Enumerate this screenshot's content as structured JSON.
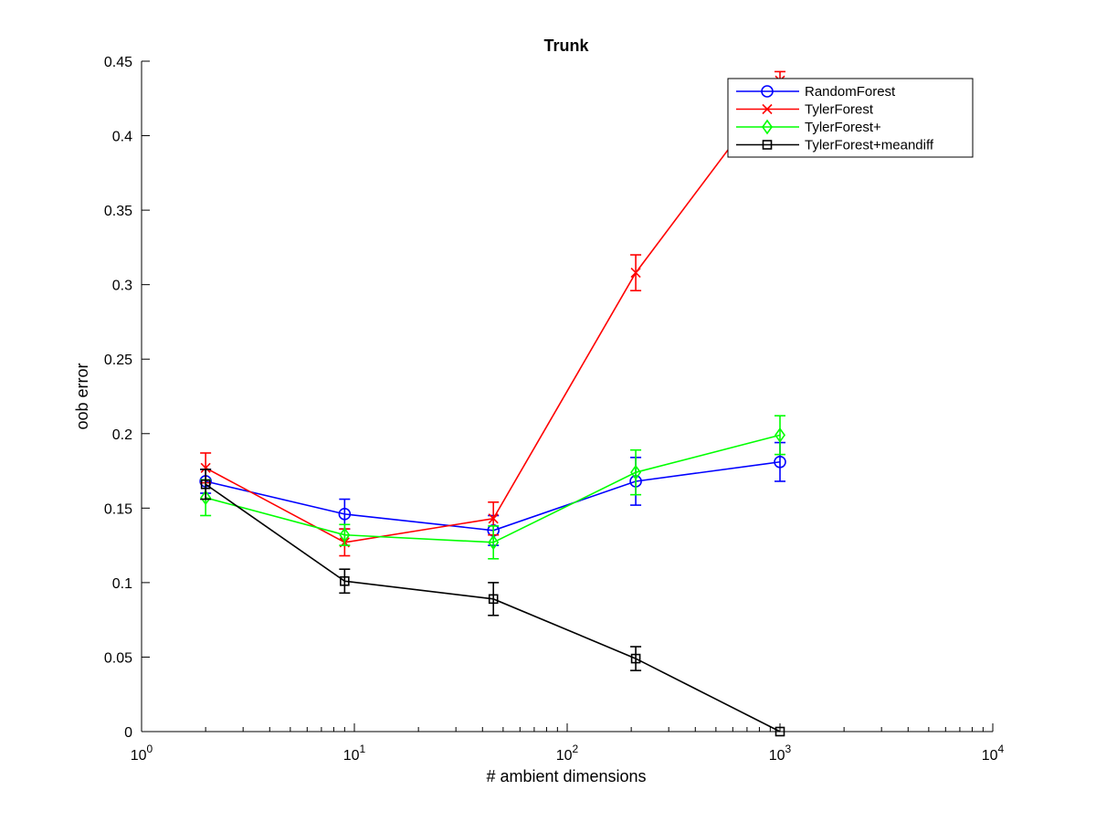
{
  "chart_data": {
    "type": "line",
    "title": "Trunk",
    "xlabel": "# ambient dimensions",
    "ylabel": "oob error",
    "xscale": "log",
    "xlim": [
      1,
      10000
    ],
    "ylim": [
      0,
      0.45
    ],
    "xticks": [
      {
        "value": 1,
        "base": "10",
        "exp": "0"
      },
      {
        "value": 10,
        "base": "10",
        "exp": "1"
      },
      {
        "value": 100,
        "base": "10",
        "exp": "2"
      },
      {
        "value": 1000,
        "base": "10",
        "exp": "3"
      },
      {
        "value": 10000,
        "base": "10",
        "exp": "4"
      }
    ],
    "yticks": [
      {
        "value": 0,
        "label": "0"
      },
      {
        "value": 0.05,
        "label": "0.05"
      },
      {
        "value": 0.1,
        "label": "0.1"
      },
      {
        "value": 0.15,
        "label": "0.15"
      },
      {
        "value": 0.2,
        "label": "0.2"
      },
      {
        "value": 0.25,
        "label": "0.25"
      },
      {
        "value": 0.3,
        "label": "0.3"
      },
      {
        "value": 0.35,
        "label": "0.35"
      },
      {
        "value": 0.4,
        "label": "0.4"
      },
      {
        "value": 0.45,
        "label": "0.45"
      }
    ],
    "grid": false,
    "legend_position": "top-right",
    "series": [
      {
        "name": "RandomForest",
        "color": "#0000ff",
        "marker": "circle",
        "x": [
          2,
          9,
          45,
          210,
          1000
        ],
        "y": [
          0.168,
          0.146,
          0.135,
          0.168,
          0.181
        ],
        "err": [
          0.008,
          0.01,
          0.01,
          0.016,
          0.013
        ]
      },
      {
        "name": "TylerForest",
        "color": "#ff0000",
        "marker": "x",
        "x": [
          2,
          9,
          45,
          210,
          1000
        ],
        "y": [
          0.177,
          0.127,
          0.143,
          0.308,
          0.437
        ],
        "err": [
          0.01,
          0.009,
          0.011,
          0.012,
          0.006
        ]
      },
      {
        "name": "TylerForest+",
        "color": "#00ff00",
        "marker": "diamond",
        "x": [
          2,
          9,
          45,
          210,
          1000
        ],
        "y": [
          0.157,
          0.132,
          0.127,
          0.174,
          0.199
        ],
        "err": [
          0.012,
          0.007,
          0.011,
          0.015,
          0.013
        ]
      },
      {
        "name": "TylerForest+meandiff",
        "color": "#000000",
        "marker": "square",
        "x": [
          2,
          9,
          45,
          210,
          1000
        ],
        "y": [
          0.166,
          0.101,
          0.089,
          0.049,
          0.0
        ],
        "err": [
          0.01,
          0.008,
          0.011,
          0.008,
          0.0
        ]
      }
    ]
  }
}
